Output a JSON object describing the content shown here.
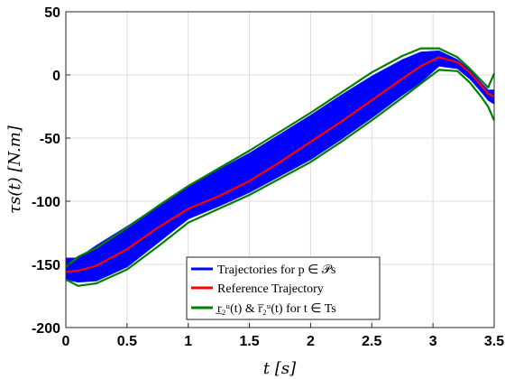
{
  "chart_data": {
    "type": "line",
    "xlabel": "t [s]",
    "ylabel": "τs(t) [N.m]",
    "xlim": [
      0,
      3.5
    ],
    "ylim": [
      -200,
      50
    ],
    "x_ticks": [
      0,
      0.5,
      1,
      1.5,
      2,
      2.5,
      3,
      3.5
    ],
    "x_tick_labels": [
      "0",
      "0.5",
      "1",
      "1.5",
      "2",
      "2.5",
      "3",
      "3.5"
    ],
    "y_ticks": [
      -200,
      -150,
      -100,
      -50,
      0,
      50
    ],
    "y_tick_labels": [
      "-200",
      "-150",
      "-100",
      "-50",
      "0",
      "50"
    ],
    "grid": true,
    "legend_position": "bottom-center",
    "colors": {
      "trajectories": "#0000ff",
      "reference": "#ff0000",
      "bounds": "#007f00"
    },
    "series": [
      {
        "name": "Trajectories for p ∈ 𝒫s",
        "kind": "band",
        "x": [
          0,
          0.1,
          0.25,
          0.5,
          0.75,
          1.0,
          1.25,
          1.5,
          1.75,
          2.0,
          2.25,
          2.5,
          2.75,
          2.9,
          3.05,
          3.2,
          3.3,
          3.4,
          3.45,
          3.5
        ],
        "upper": [
          -145,
          -145,
          -135,
          -120,
          -104,
          -88,
          -75,
          -62,
          -47,
          -32,
          -16,
          -1,
          12,
          18,
          19,
          12,
          4,
          -7,
          -12,
          -12
        ],
        "lower": [
          -162,
          -164,
          -163,
          -152,
          -133,
          -114,
          -104,
          -93,
          -80,
          -67,
          -51,
          -34,
          -16,
          -6,
          7,
          5,
          -3,
          -14,
          -20,
          -23
        ]
      },
      {
        "name": "Reference Trajectory",
        "kind": "line",
        "x": [
          0,
          0.1,
          0.25,
          0.5,
          0.75,
          1.0,
          1.25,
          1.5,
          1.75,
          2.0,
          2.25,
          2.5,
          2.75,
          2.9,
          3.05,
          3.2,
          3.3,
          3.4,
          3.45,
          3.5
        ],
        "y": [
          -156,
          -155,
          -151,
          -138,
          -121,
          -106,
          -96,
          -84,
          -69,
          -53,
          -37,
          -20,
          -3,
          7,
          14,
          10,
          2,
          -9,
          -15,
          -17
        ]
      },
      {
        "name": "r2u(t) & r2u(t) for t ∈ Ts",
        "legend_label": "r̲₂ᵘ(t) & r̅₂ᵘ(t) for t ∈ Ts",
        "kind": "bounds",
        "x": [
          0,
          0.1,
          0.25,
          0.5,
          0.75,
          1.0,
          1.25,
          1.5,
          1.75,
          2.0,
          2.25,
          2.5,
          2.75,
          2.9,
          3.05,
          3.2,
          3.3,
          3.4,
          3.45,
          3.5
        ],
        "upper": [
          -152,
          -144,
          -137,
          -121,
          -104,
          -88,
          -74,
          -60,
          -45,
          -30,
          -14,
          2,
          15,
          21,
          21,
          14,
          5,
          -5,
          -10,
          1
        ],
        "lower": [
          -162,
          -167,
          -165,
          -154,
          -136,
          -117,
          -106,
          -95,
          -82,
          -69,
          -53,
          -36,
          -18,
          -7,
          4,
          3,
          -6,
          -18,
          -25,
          -36
        ]
      }
    ]
  }
}
